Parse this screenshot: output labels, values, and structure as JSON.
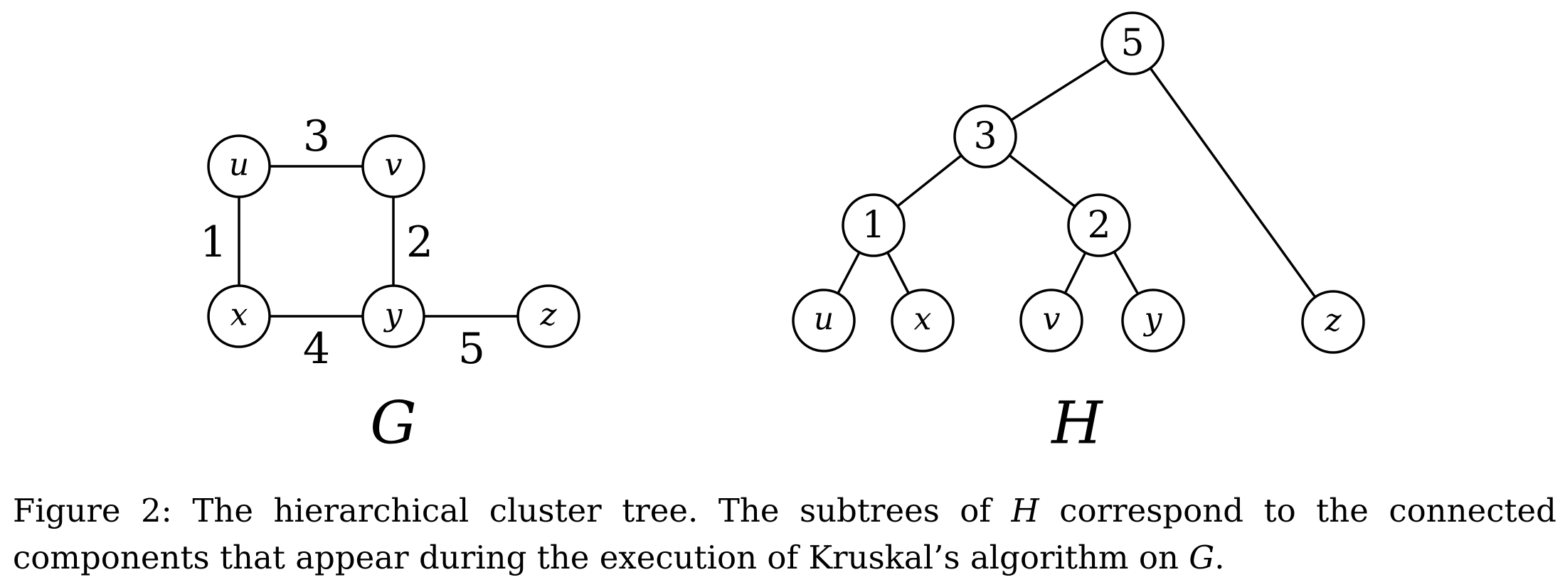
{
  "graph_g": {
    "name": "G",
    "nodes": [
      "u",
      "v",
      "x",
      "y",
      "z"
    ],
    "edges": [
      {
        "from": "u",
        "to": "x",
        "weight": "1"
      },
      {
        "from": "v",
        "to": "y",
        "weight": "2"
      },
      {
        "from": "u",
        "to": "v",
        "weight": "3"
      },
      {
        "from": "x",
        "to": "y",
        "weight": "4"
      },
      {
        "from": "y",
        "to": "z",
        "weight": "5"
      }
    ]
  },
  "tree_h": {
    "name": "H",
    "internal_nodes": [
      "5",
      "3",
      "1",
      "2"
    ],
    "leaves": [
      "u",
      "x",
      "v",
      "y",
      "z"
    ],
    "edges": [
      {
        "parent": "5",
        "child": "3"
      },
      {
        "parent": "5",
        "child": "z"
      },
      {
        "parent": "3",
        "child": "1"
      },
      {
        "parent": "3",
        "child": "2"
      },
      {
        "parent": "1",
        "child": "u"
      },
      {
        "parent": "1",
        "child": "x"
      },
      {
        "parent": "2",
        "child": "v"
      },
      {
        "parent": "2",
        "child": "y"
      }
    ]
  },
  "caption": {
    "part1": "Figure 2:  The hierarchical cluster tree.  The subtrees of ",
    "h": "H",
    "part2": " correspond to the connected components that appear during the execution of Kruskal’s algorithm on ",
    "g": "G",
    "part3": "."
  }
}
